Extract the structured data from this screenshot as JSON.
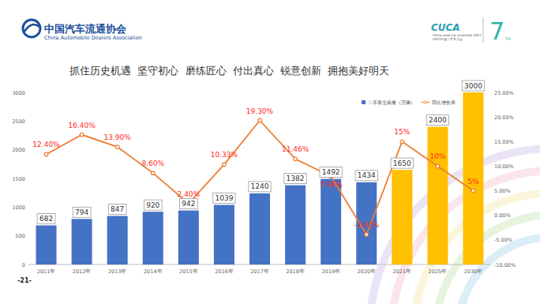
{
  "header": {
    "org_cn": "中国汽车流通协会",
    "org_en": "China Automobile Dealers Association",
    "event_logo": "CUCA",
    "event_en": "China used car assembly 2021",
    "event_cn": "2021中国二手车大会",
    "edition": "7",
    "edition_suffix": "TH"
  },
  "slogan": "抓住历史机遇  坚守初心  磨练匠心  付出真心  锐意创新  拥抱美好明天",
  "page_number": "-21-",
  "chart_data": {
    "type": "bar",
    "categories": [
      "2011年",
      "2012年",
      "2013年",
      "2014年",
      "2015年",
      "2016年",
      "2017年",
      "2018年",
      "2019年",
      "2020年",
      "2021年",
      "2025年",
      "2030年"
    ],
    "series": [
      {
        "name": "二手车交易量（万辆）",
        "type": "bar",
        "colors": [
          "#4472c4",
          "#4472c4",
          "#4472c4",
          "#4472c4",
          "#4472c4",
          "#4472c4",
          "#4472c4",
          "#4472c4",
          "#4472c4",
          "#4472c4",
          "#ffc000",
          "#ffc000",
          "#ffc000"
        ],
        "values": [
          682,
          794,
          847,
          920,
          942,
          1039,
          1240,
          1382,
          1492,
          1434,
          1650,
          2400,
          3000
        ]
      },
      {
        "name": "同比增长率",
        "type": "line",
        "axis": "y2",
        "color": "#ed7d31",
        "marker": "circle",
        "values": [
          12.4,
          16.4,
          13.9,
          8.6,
          2.4,
          10.33,
          19.3,
          11.46,
          7.96,
          -3.91,
          15,
          10,
          5
        ],
        "value_labels": [
          "12.40%",
          "16.40%",
          "13.90%",
          "8.60%",
          "2.40%",
          "10.33%",
          "19.30%",
          "11.46%",
          "7.96%",
          "-3.91%",
          "15%",
          "10%",
          "5%"
        ]
      }
    ],
    "ylim": [
      0,
      3000
    ],
    "yticks": [
      0,
      500,
      1000,
      1500,
      2000,
      2500,
      3000
    ],
    "y2lim": [
      -10,
      25
    ],
    "y2ticks": [
      {
        "value": -10,
        "label": "-10.00%"
      },
      {
        "value": -5,
        "label": "-5.00%"
      },
      {
        "value": 0,
        "label": "0.00%"
      },
      {
        "value": 5,
        "label": "5.00%"
      },
      {
        "value": 10,
        "label": "10.00%"
      },
      {
        "value": 15,
        "label": "15.00%"
      },
      {
        "value": 20,
        "label": "20.00%"
      },
      {
        "value": 25,
        "label": "25.00%"
      }
    ],
    "grid": false,
    "legend": "top-right",
    "data_labels": true
  }
}
